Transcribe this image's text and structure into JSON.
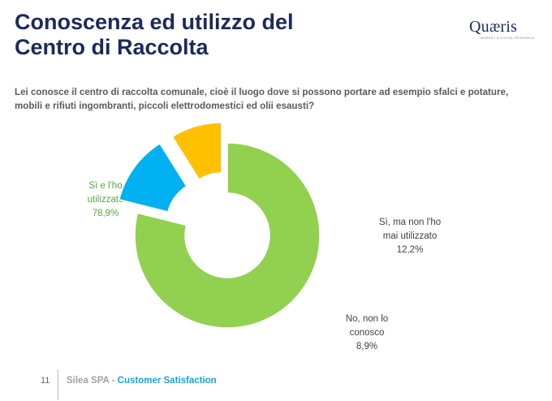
{
  "header": {
    "title_line1": "Conoscenza ed utilizzo del",
    "title_line2": "Centro di Raccolta"
  },
  "logo": {
    "name": "Quæris",
    "tagline": "MARKET & SOCIAL RESEARCH"
  },
  "question": "Lei conosce il centro di raccolta comunale, cioè il luogo dove si possono portare ad esempio sfalci e potature, mobili e rifiuti ingombranti, piccoli elettrodomestici ed olii esausti?",
  "chart_data": {
    "type": "pie",
    "variant": "donut-exploded",
    "series": [
      {
        "name": "Sì e l'ho utilizzato",
        "label_lines": [
          "Sì e l'ho",
          "utilizzato"
        ],
        "value": 78.9,
        "display": "78,9%",
        "color": "#92d050"
      },
      {
        "name": "Sì, ma non l'ho mai utilizzato",
        "label_lines": [
          "Sì, ma non l'ho",
          "mai utilizzato"
        ],
        "value": 12.2,
        "display": "12,2%",
        "color": "#00b0f0"
      },
      {
        "name": "No, non lo conosco",
        "label_lines": [
          "No, non lo",
          "conosco"
        ],
        "value": 8.9,
        "display": "8,9%",
        "color": "#ffc000"
      }
    ]
  },
  "footer": {
    "page_number": "11",
    "company": "Silea SPA - ",
    "section": "Customer Satisfaction"
  }
}
